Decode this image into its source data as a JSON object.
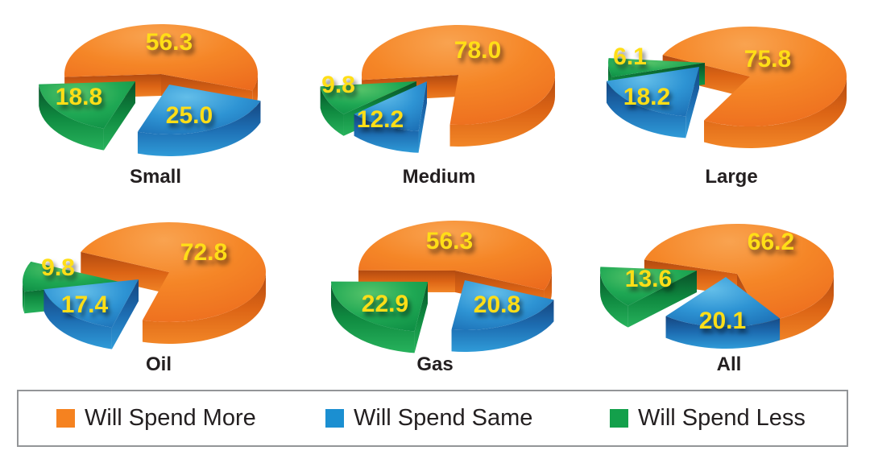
{
  "chart_data": {
    "type": "pie",
    "variant": "3d-exploded",
    "unit": "percent",
    "series": [
      {
        "name": "Will Spend More",
        "color": "#F58220"
      },
      {
        "name": "Will Spend Same",
        "color": "#1B8FD1"
      },
      {
        "name": "Will Spend Less",
        "color": "#13A04B"
      }
    ],
    "label_color": "#FFDE17",
    "legend_position": "bottom",
    "pies": [
      {
        "label": "Small",
        "values": [
          56.3,
          25.0,
          18.8
        ]
      },
      {
        "label": "Medium",
        "values": [
          78.0,
          12.2,
          9.8
        ]
      },
      {
        "label": "Large",
        "values": [
          75.8,
          18.2,
          6.1
        ]
      },
      {
        "label": "Oil",
        "values": [
          72.8,
          17.4,
          9.8
        ]
      },
      {
        "label": "Gas",
        "values": [
          56.3,
          20.8,
          22.9
        ]
      },
      {
        "label": "All",
        "values": [
          66.2,
          20.1,
          13.6
        ]
      }
    ]
  }
}
